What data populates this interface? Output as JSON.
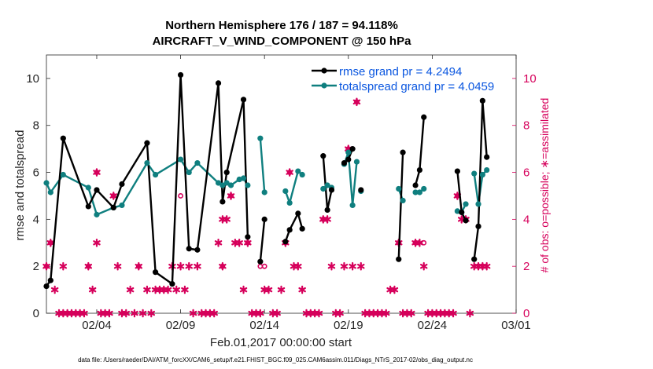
{
  "chart_data": {
    "type": "line",
    "title": "Northern Hemisphere 176 / 187 = 94.118%",
    "subtitle": "AIRCRAFT_V_WIND_COMPONENT @ 150 hPa",
    "xlabel": "Feb.01,2017 00:00:00 start",
    "ylabel": "rmse and totalspread",
    "y2label": "# of obs: o=possible; ∗=assimilated",
    "footer": "data file: /Users/raeder/DAI/ATM_forcXX/CAM6_setup/f.e21.FHIST_BGC.f09_025.CAM6assim.011/Diags_NTrS_2017-02/obs_diag_output.nc",
    "xlim": [
      0,
      28
    ],
    "ylim": [
      0,
      11
    ],
    "y2lim": [
      0,
      11
    ],
    "xticks": [
      {
        "x": 3,
        "label": "02/04"
      },
      {
        "x": 8,
        "label": "02/09"
      },
      {
        "x": 13,
        "label": "02/14"
      },
      {
        "x": 18,
        "label": "02/19"
      },
      {
        "x": 23,
        "label": "02/24"
      },
      {
        "x": 28,
        "label": "03/01"
      }
    ],
    "yticks": [
      0,
      2,
      4,
      6,
      8,
      10
    ],
    "y2ticks": [
      0,
      2,
      4,
      6,
      8,
      10
    ],
    "colors": {
      "rmse": "#000000",
      "spread": "#0f7f7f",
      "obs": "#d6005b",
      "legend_text": "#0b57e0"
    },
    "series": [
      {
        "name": "rmse grand pr = 4.2494",
        "key": "rmse",
        "points": [
          [
            0.0,
            1.15
          ],
          [
            0.25,
            1.4
          ],
          [
            1.0,
            7.45
          ],
          [
            2.5,
            4.55
          ],
          [
            3.0,
            5.25
          ],
          [
            4.0,
            4.5
          ],
          [
            4.5,
            5.5
          ],
          [
            6.0,
            7.25
          ],
          [
            6.5,
            1.75
          ],
          [
            7.5,
            1.25
          ],
          [
            8.0,
            10.15
          ],
          [
            8.5,
            2.75
          ],
          [
            9.0,
            2.7
          ],
          [
            10.25,
            9.8
          ],
          [
            10.5,
            4.75
          ],
          [
            10.75,
            6.0
          ],
          [
            11.75,
            9.1
          ],
          [
            12.0,
            3.25
          ],
          [
            null,
            null
          ],
          [
            12.75,
            2.2
          ],
          [
            13.0,
            4.0
          ],
          [
            null,
            null
          ],
          [
            14.25,
            3.05
          ],
          [
            14.5,
            3.55
          ],
          [
            15.0,
            4.25
          ],
          [
            15.25,
            3.6
          ],
          [
            null,
            null
          ],
          [
            16.5,
            6.7
          ],
          [
            16.75,
            4.4
          ],
          [
            17.0,
            5.25
          ],
          [
            null,
            null
          ],
          [
            17.75,
            6.4
          ],
          [
            18.0,
            6.55
          ],
          [
            18.25,
            7.0
          ],
          [
            null,
            null
          ],
          [
            18.75,
            5.25
          ],
          [
            null,
            null
          ],
          [
            21.0,
            2.3
          ],
          [
            21.25,
            6.85
          ],
          [
            null,
            null
          ],
          [
            22.0,
            5.45
          ],
          [
            22.25,
            6.1
          ],
          [
            22.5,
            8.35
          ],
          [
            null,
            null
          ],
          [
            24.5,
            6.05
          ],
          [
            24.75,
            4.3
          ],
          [
            25.0,
            3.95
          ],
          [
            null,
            null
          ],
          [
            25.5,
            2.3
          ],
          [
            25.75,
            3.7
          ],
          [
            26.0,
            9.05
          ],
          [
            26.25,
            6.65
          ]
        ]
      },
      {
        "name": "totalspread grand pr = 4.0459",
        "key": "spread",
        "points": [
          [
            0.0,
            5.55
          ],
          [
            0.25,
            5.15
          ],
          [
            1.0,
            5.9
          ],
          [
            2.5,
            5.35
          ],
          [
            3.0,
            4.2
          ],
          [
            4.0,
            4.5
          ],
          [
            4.5,
            4.6
          ],
          [
            6.0,
            6.4
          ],
          [
            6.5,
            5.9
          ],
          [
            8.0,
            6.55
          ],
          [
            8.5,
            6.0
          ],
          [
            9.0,
            6.4
          ],
          [
            10.25,
            5.55
          ],
          [
            10.5,
            5.45
          ],
          [
            10.75,
            5.55
          ],
          [
            11.0,
            5.45
          ],
          [
            11.5,
            5.7
          ],
          [
            11.75,
            5.75
          ],
          [
            12.0,
            5.45
          ],
          [
            null,
            null
          ],
          [
            12.75,
            7.45
          ],
          [
            13.0,
            5.15
          ],
          [
            null,
            null
          ],
          [
            14.25,
            5.2
          ],
          [
            14.5,
            4.7
          ],
          [
            15.0,
            6.05
          ],
          [
            15.25,
            5.9
          ],
          [
            null,
            null
          ],
          [
            16.5,
            5.3
          ],
          [
            16.75,
            5.45
          ],
          [
            17.0,
            5.35
          ],
          [
            null,
            null
          ],
          [
            17.75,
            6.35
          ],
          [
            18.0,
            6.85
          ],
          [
            18.25,
            4.6
          ],
          [
            18.5,
            6.45
          ],
          [
            null,
            null
          ],
          [
            18.75,
            5.2
          ],
          [
            null,
            null
          ],
          [
            21.0,
            5.3
          ],
          [
            21.25,
            4.8
          ],
          [
            null,
            null
          ],
          [
            22.0,
            5.15
          ],
          [
            22.25,
            5.15
          ],
          [
            22.5,
            5.3
          ],
          [
            null,
            null
          ],
          [
            24.5,
            4.35
          ],
          [
            24.75,
            4.3
          ],
          [
            25.0,
            4.65
          ],
          [
            null,
            null
          ],
          [
            25.5,
            5.95
          ],
          [
            25.75,
            4.65
          ],
          [
            26.0,
            5.9
          ],
          [
            26.25,
            6.1
          ]
        ]
      }
    ],
    "obs_assimilated": [
      [
        0.0,
        2
      ],
      [
        0.25,
        3
      ],
      [
        0.5,
        1
      ],
      [
        0.75,
        0
      ],
      [
        1.0,
        2
      ],
      [
        1.0,
        0
      ],
      [
        1.25,
        0
      ],
      [
        1.5,
        0
      ],
      [
        1.75,
        0
      ],
      [
        2.0,
        0
      ],
      [
        2.25,
        0
      ],
      [
        2.5,
        2
      ],
      [
        2.75,
        1
      ],
      [
        3.0,
        6
      ],
      [
        3.0,
        3
      ],
      [
        3.25,
        0
      ],
      [
        3.5,
        0
      ],
      [
        3.75,
        0
      ],
      [
        4.0,
        5
      ],
      [
        4.25,
        2
      ],
      [
        4.5,
        0
      ],
      [
        4.75,
        0
      ],
      [
        5.0,
        1
      ],
      [
        5.25,
        0
      ],
      [
        5.5,
        2
      ],
      [
        5.75,
        0
      ],
      [
        6.0,
        1
      ],
      [
        6.25,
        0
      ],
      [
        6.5,
        1
      ],
      [
        6.75,
        1
      ],
      [
        7.0,
        1
      ],
      [
        7.25,
        1
      ],
      [
        7.5,
        2
      ],
      [
        7.75,
        1
      ],
      [
        8.0,
        2
      ],
      [
        8.25,
        1
      ],
      [
        8.5,
        2
      ],
      [
        8.75,
        0
      ],
      [
        9.0,
        2
      ],
      [
        9.25,
        0
      ],
      [
        9.5,
        0
      ],
      [
        9.75,
        0
      ],
      [
        10.0,
        0
      ],
      [
        10.25,
        3
      ],
      [
        10.5,
        4
      ],
      [
        10.5,
        2
      ],
      [
        10.75,
        4
      ],
      [
        11.0,
        5
      ],
      [
        11.25,
        3
      ],
      [
        11.5,
        3
      ],
      [
        11.75,
        1
      ],
      [
        12.0,
        3
      ],
      [
        12.25,
        0
      ],
      [
        12.5,
        0
      ],
      [
        12.75,
        0
      ],
      [
        13.0,
        1
      ],
      [
        13.25,
        1
      ],
      [
        13.5,
        0
      ],
      [
        13.75,
        0
      ],
      [
        14.0,
        1
      ],
      [
        14.25,
        3
      ],
      [
        14.5,
        6
      ],
      [
        14.75,
        2
      ],
      [
        15.0,
        2
      ],
      [
        15.25,
        1
      ],
      [
        15.5,
        0
      ],
      [
        15.75,
        0
      ],
      [
        16.0,
        0
      ],
      [
        16.25,
        0
      ],
      [
        16.5,
        4
      ],
      [
        16.75,
        4
      ],
      [
        17.0,
        2
      ],
      [
        17.25,
        0
      ],
      [
        17.5,
        0
      ],
      [
        17.75,
        2
      ],
      [
        18.0,
        7
      ],
      [
        18.25,
        2
      ],
      [
        18.5,
        9
      ],
      [
        18.75,
        2
      ],
      [
        19.0,
        0
      ],
      [
        19.25,
        0
      ],
      [
        19.5,
        0
      ],
      [
        19.75,
        0
      ],
      [
        20.0,
        0
      ],
      [
        20.25,
        0
      ],
      [
        20.5,
        1
      ],
      [
        20.75,
        1
      ],
      [
        21.0,
        3
      ],
      [
        21.25,
        0
      ],
      [
        21.5,
        0
      ],
      [
        21.75,
        0
      ],
      [
        22.0,
        3
      ],
      [
        22.25,
        3
      ],
      [
        22.5,
        2
      ],
      [
        22.75,
        0
      ],
      [
        23.0,
        0
      ],
      [
        23.25,
        0
      ],
      [
        23.5,
        0
      ],
      [
        23.75,
        0
      ],
      [
        24.0,
        0
      ],
      [
        24.25,
        0
      ],
      [
        24.5,
        5
      ],
      [
        24.75,
        4
      ],
      [
        25.0,
        4
      ],
      [
        25.25,
        0
      ],
      [
        25.5,
        2
      ],
      [
        25.75,
        2
      ],
      [
        26.0,
        2
      ],
      [
        26.25,
        2
      ]
    ],
    "obs_possible": [
      [
        0.0,
        2
      ],
      [
        0.25,
        3
      ],
      [
        2.5,
        2
      ],
      [
        3.0,
        6
      ],
      [
        4.0,
        5
      ],
      [
        5.5,
        2
      ],
      [
        8.0,
        5
      ],
      [
        10.5,
        2
      ],
      [
        11.0,
        5
      ],
      [
        12.0,
        3
      ],
      [
        12.75,
        2
      ],
      [
        13.0,
        2
      ],
      [
        14.25,
        3
      ],
      [
        14.5,
        6
      ],
      [
        16.5,
        4
      ],
      [
        18.0,
        7
      ],
      [
        18.5,
        9
      ],
      [
        21.0,
        3
      ],
      [
        22.0,
        3
      ],
      [
        22.5,
        3
      ],
      [
        24.5,
        5
      ],
      [
        25.0,
        4
      ]
    ]
  }
}
